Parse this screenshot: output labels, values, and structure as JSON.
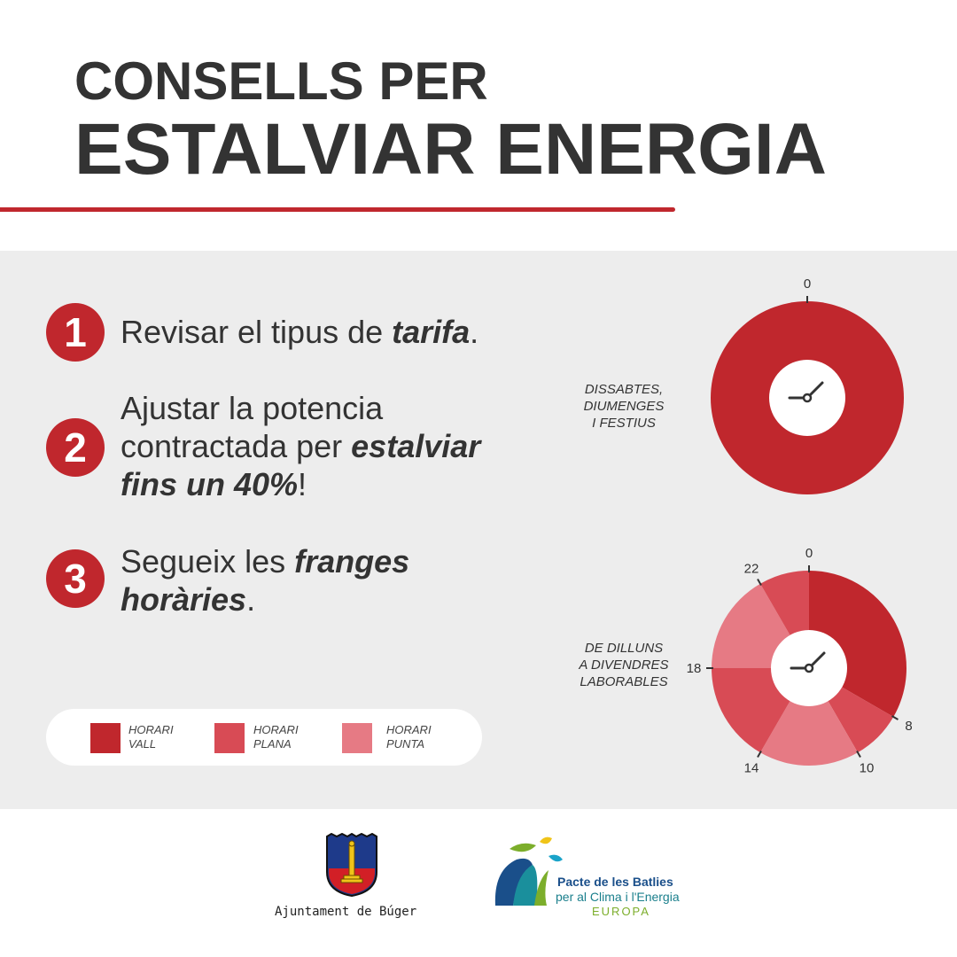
{
  "header": {
    "title_line1": "CONSELLS PER",
    "title_line2": "ESTALVIAR ENERGIA"
  },
  "tips": [
    {
      "number": "1",
      "pre": "Revisar el tipus de ",
      "bold": "tarifa",
      "post": "."
    },
    {
      "number": "2",
      "line1": "Ajustar la potencia",
      "line2_pre": "contractada per ",
      "line2_bold": "estalviar",
      "line3_bold": "fins un 40%",
      "line3_post": "!"
    },
    {
      "number": "3",
      "line1_pre": "Segueix les ",
      "line1_bold": "franges",
      "line2_bold": "horàries",
      "line2_post": "."
    }
  ],
  "legend": [
    {
      "line1": "HORARI",
      "line2": "VALL",
      "color": "#c0272d"
    },
    {
      "line1": "HORARI",
      "line2": "PLANA",
      "color": "#d84b55"
    },
    {
      "line1": "HORARI",
      "line2": "PUNTA",
      "color": "#e67a84"
    }
  ],
  "clocks": {
    "weekend": {
      "line1": "DISSABTES,",
      "line2": "DIUMENGES",
      "line3": "I FESTIUS",
      "tick": "0"
    },
    "weekday": {
      "line1": "DE DILLUNS",
      "line2": "A DIVENDRES",
      "line3": "LABORABLES"
    }
  },
  "chart_data": [
    {
      "type": "pie",
      "title": "",
      "labels": [
        "VALL"
      ],
      "segments": [
        {
          "from_hour": 0,
          "to_hour": 24,
          "band": "VALL"
        }
      ],
      "tick_labels": [
        "0"
      ]
    },
    {
      "type": "pie",
      "title": "",
      "segments": [
        {
          "from_hour": 0,
          "to_hour": 8,
          "band": "VALL"
        },
        {
          "from_hour": 8,
          "to_hour": 10,
          "band": "PLANA"
        },
        {
          "from_hour": 10,
          "to_hour": 14,
          "band": "PUNTA"
        },
        {
          "from_hour": 14,
          "to_hour": 18,
          "band": "PLANA"
        },
        {
          "from_hour": 18,
          "to_hour": 22,
          "band": "PUNTA"
        },
        {
          "from_hour": 22,
          "to_hour": 24,
          "band": "PLANA"
        }
      ],
      "tick_labels": [
        "0",
        "8",
        "10",
        "14",
        "18",
        "22"
      ]
    }
  ],
  "colors": {
    "vall": "#c0272d",
    "plana": "#d84b55",
    "punta": "#e67a84",
    "panel": "#ededed",
    "text": "#333333"
  },
  "footer": {
    "ajuntament": "Ajuntament de Búger",
    "pacte_line1": "Pacte de les Batlies",
    "pacte_line2": "per al Clima i l'Energia",
    "pacte_line3": "EUROPA"
  }
}
